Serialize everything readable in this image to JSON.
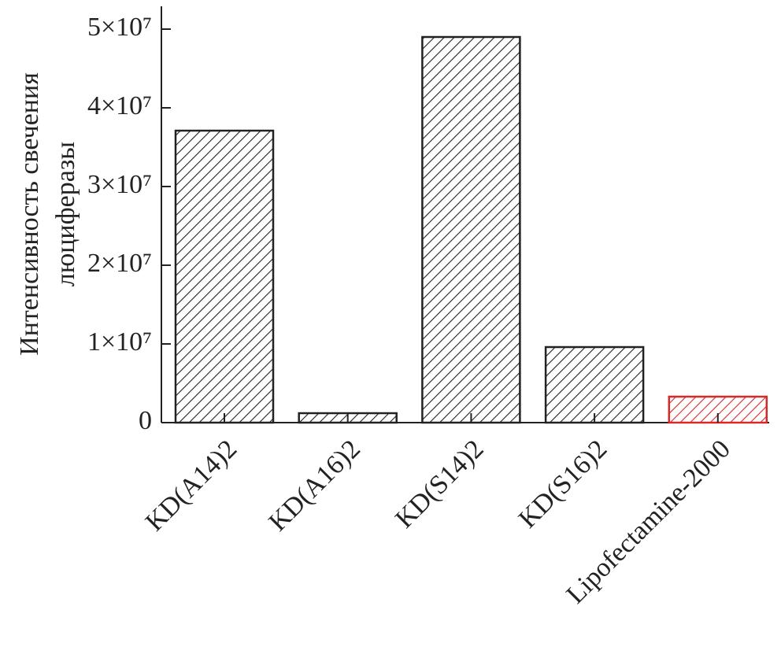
{
  "chart_data": {
    "type": "bar",
    "ylabel": [
      "Интенсивность свечения",
      "люциферазы"
    ],
    "categories": [
      "KD(A14)2",
      "KD(A16)2",
      "KD(S14)2",
      "KD(S16)2",
      "Lipofectamine-2000"
    ],
    "values": [
      37100000,
      1200000,
      49000000,
      9600000,
      3300000
    ],
    "colors": [
      "#222222",
      "#222222",
      "#222222",
      "#222222",
      "#d62a2a"
    ],
    "ylim": [
      0,
      52900000
    ],
    "yticks": [
      0,
      {
        "value": 10000000,
        "label": "1×10⁷"
      },
      {
        "value": 20000000,
        "label": "2×10⁷"
      },
      {
        "value": 30000000,
        "label": "3×10⁷"
      },
      {
        "value": 40000000,
        "label": "4×10⁷"
      },
      {
        "value": 50000000,
        "label": "5×10⁷"
      }
    ],
    "hatch": true
  }
}
